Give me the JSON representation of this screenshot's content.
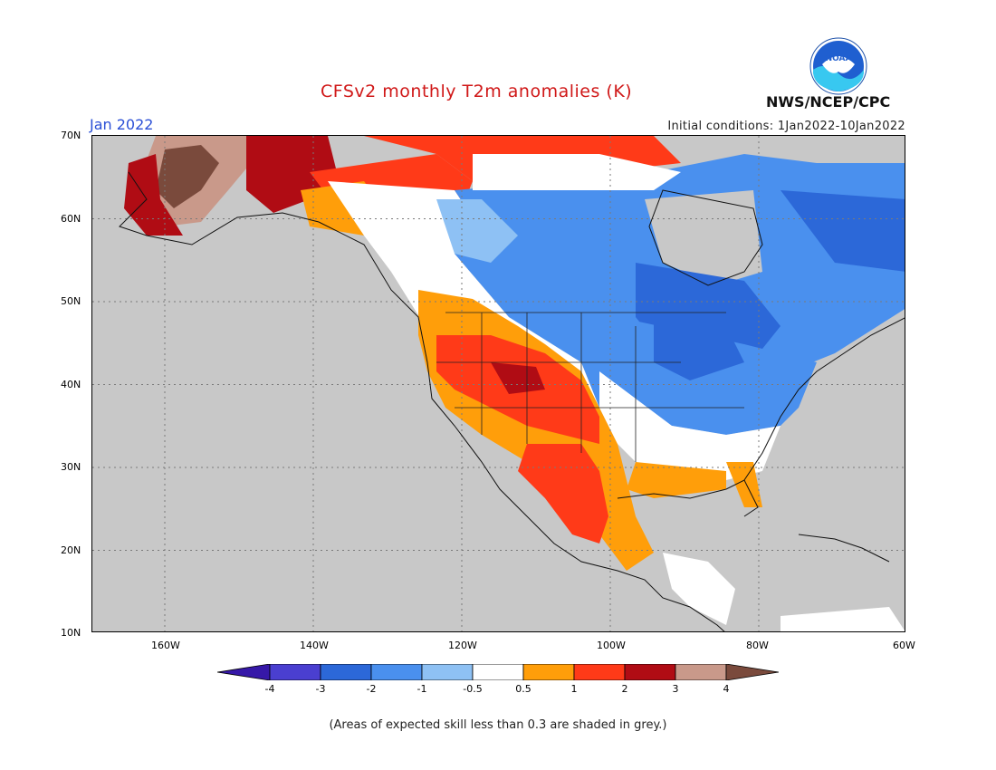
{
  "header": {
    "title": "CFSv2 monthly T2m anomalies (K)",
    "month": "Jan 2022",
    "initial_conditions": "Initial conditions: 1Jan2022-10Jan2022",
    "agency": "NWS/NCEP/CPC",
    "logo_text": "NOAA"
  },
  "map": {
    "lat_labels": [
      "70N",
      "60N",
      "50N",
      "40N",
      "30N",
      "20N",
      "10N"
    ],
    "lon_labels": [
      "160W",
      "140W",
      "120W",
      "100W",
      "80W",
      "60W"
    ],
    "lon_range": [
      -170,
      -60
    ],
    "lat_range": [
      10,
      70
    ]
  },
  "colorbar": {
    "labels": [
      "-4",
      "-3",
      "-2",
      "-1",
      "-0.5",
      "0.5",
      "1",
      "2",
      "3",
      "4"
    ],
    "colors": [
      "#3618a8",
      "#4a3fd0",
      "#2c68d8",
      "#4a90ee",
      "#8ec1f4",
      "#ffffff",
      "#ff9e0a",
      "#ff3a18",
      "#b00c14",
      "#c9998a",
      "#7a4a3c"
    ]
  },
  "legend_colors": {
    "no_skill": "#c8c8c8",
    "ocean_grid": "#7a7a7a"
  },
  "note": "(Areas of expected skill less than 0.3 are shaded in grey.)"
}
